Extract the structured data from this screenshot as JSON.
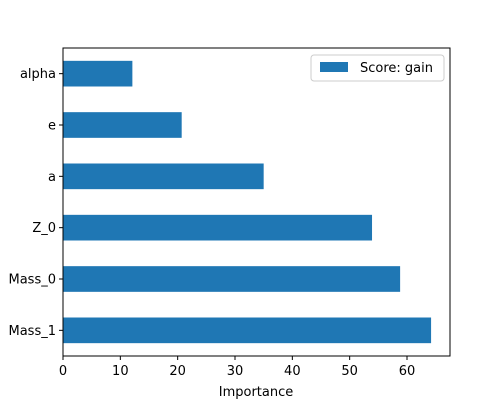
{
  "chart_data": {
    "type": "bar",
    "orientation": "horizontal",
    "categories": [
      "Mass_1",
      "Mass_0",
      "Z_0",
      "a",
      "e",
      "alpha"
    ],
    "series": [
      {
        "name": "Score: gain",
        "values": [
          64.2,
          58.8,
          53.9,
          35.0,
          20.7,
          12.1
        ]
      }
    ],
    "xlabel": "Importance",
    "ylabel": "",
    "title": "",
    "xlim": [
      0,
      67.5
    ],
    "xticks": [
      0,
      10,
      20,
      30,
      40,
      50,
      60
    ],
    "grid": false,
    "legend_position": "top-right",
    "colors": {
      "bar": "#1f77b4"
    }
  }
}
